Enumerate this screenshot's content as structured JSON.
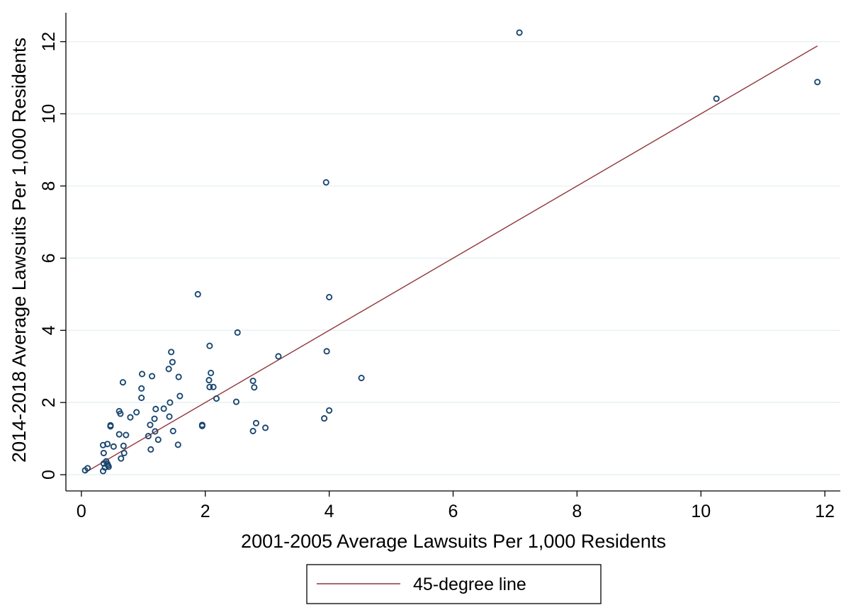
{
  "chart_data": {
    "type": "scatter",
    "xlabel": "2001-2005 Average Lawsuits Per 1,000 Residents",
    "ylabel": "2014-2018 Average Lawsuits Per 1,000 Residents",
    "xlim": [
      -0.25,
      12.25
    ],
    "ylim": [
      -0.45,
      12.8
    ],
    "x_ticks": [
      0,
      2,
      4,
      6,
      8,
      10,
      12
    ],
    "y_ticks": [
      0,
      2,
      4,
      6,
      8,
      10,
      12
    ],
    "x_tick_labels": [
      "0",
      "2",
      "4",
      "6",
      "8",
      "10",
      "12"
    ],
    "y_tick_labels": [
      "0",
      "2",
      "4",
      "6",
      "8",
      "10",
      "12"
    ],
    "grid": "horizontal",
    "legend_position": "bottom-center",
    "colors": {
      "points": "#1a476f",
      "line": "#90353b",
      "grid": "#eaf2f3"
    },
    "reference_line": {
      "name": "45-degree line",
      "x": [
        0.05,
        11.88
      ],
      "y": [
        0.05,
        11.88
      ]
    },
    "legend": [
      "45-degree line"
    ],
    "points": [
      [
        7.07,
        12.25
      ],
      [
        10.25,
        10.42
      ],
      [
        11.88,
        10.88
      ],
      [
        3.95,
        8.1
      ],
      [
        4.0,
        4.92
      ],
      [
        1.88,
        5.0
      ],
      [
        2.52,
        3.94
      ],
      [
        3.96,
        3.42
      ],
      [
        3.18,
        3.28
      ],
      [
        4.52,
        2.68
      ],
      [
        2.07,
        3.57
      ],
      [
        1.45,
        3.4
      ],
      [
        1.47,
        3.12
      ],
      [
        1.41,
        2.93
      ],
      [
        2.09,
        2.82
      ],
      [
        0.98,
        2.79
      ],
      [
        1.14,
        2.73
      ],
      [
        1.57,
        2.71
      ],
      [
        0.67,
        2.56
      ],
      [
        2.06,
        2.62
      ],
      [
        2.77,
        2.6
      ],
      [
        0.97,
        2.39
      ],
      [
        2.07,
        2.43
      ],
      [
        2.13,
        2.43
      ],
      [
        2.79,
        2.42
      ],
      [
        1.59,
        2.18
      ],
      [
        0.97,
        2.13
      ],
      [
        2.18,
        2.11
      ],
      [
        2.5,
        2.02
      ],
      [
        1.43,
        2.0
      ],
      [
        1.33,
        1.83
      ],
      [
        1.2,
        1.82
      ],
      [
        0.61,
        1.76
      ],
      [
        4.0,
        1.78
      ],
      [
        0.89,
        1.73
      ],
      [
        0.63,
        1.69
      ],
      [
        1.42,
        1.61
      ],
      [
        0.79,
        1.59
      ],
      [
        1.18,
        1.55
      ],
      [
        3.92,
        1.56
      ],
      [
        2.82,
        1.43
      ],
      [
        1.11,
        1.38
      ],
      [
        0.47,
        1.37
      ],
      [
        0.47,
        1.34
      ],
      [
        1.95,
        1.38
      ],
      [
        1.95,
        1.35
      ],
      [
        2.97,
        1.3
      ],
      [
        1.48,
        1.21
      ],
      [
        1.19,
        1.2
      ],
      [
        2.77,
        1.21
      ],
      [
        0.61,
        1.12
      ],
      [
        0.72,
        1.1
      ],
      [
        1.08,
        1.07
      ],
      [
        1.24,
        0.97
      ],
      [
        0.42,
        0.85
      ],
      [
        0.35,
        0.82
      ],
      [
        1.56,
        0.83
      ],
      [
        0.52,
        0.78
      ],
      [
        0.68,
        0.8
      ],
      [
        1.12,
        0.7
      ],
      [
        0.36,
        0.6
      ],
      [
        0.69,
        0.6
      ],
      [
        0.64,
        0.45
      ],
      [
        0.4,
        0.37
      ],
      [
        0.36,
        0.31
      ],
      [
        0.42,
        0.3
      ],
      [
        0.43,
        0.26
      ],
      [
        0.44,
        0.22
      ],
      [
        0.38,
        0.2
      ],
      [
        0.1,
        0.18
      ],
      [
        0.35,
        0.1
      ],
      [
        0.06,
        0.12
      ]
    ]
  }
}
